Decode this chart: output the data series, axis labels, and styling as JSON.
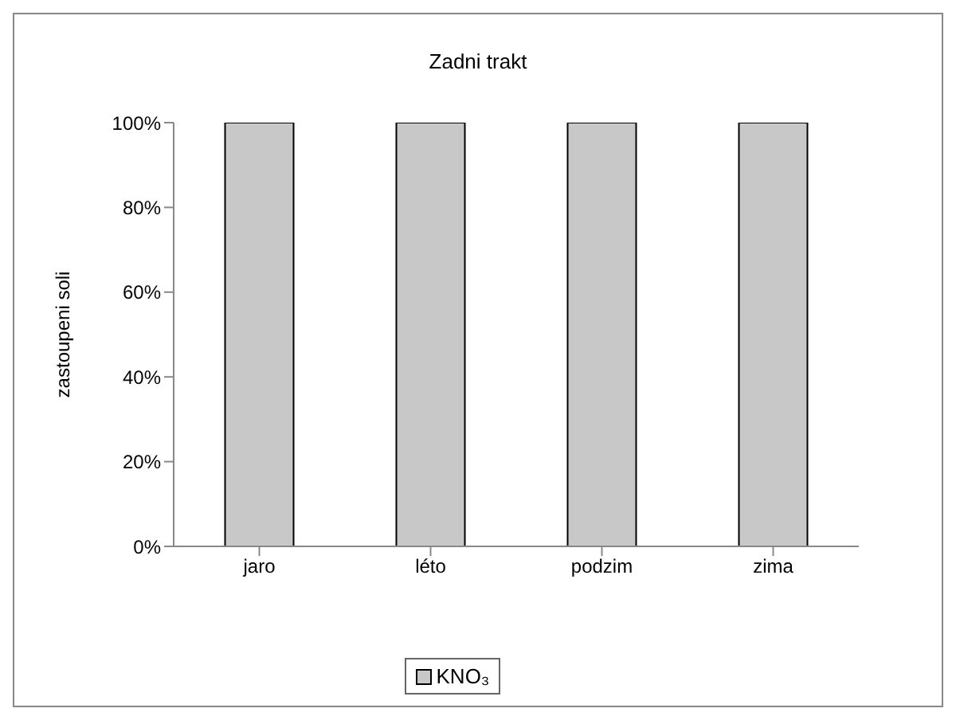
{
  "chart_data": {
    "type": "bar",
    "title": "Zadni trakt",
    "ylabel": "zastoupeni soli",
    "categories": [
      "jaro",
      "léto",
      "podzim",
      "zima"
    ],
    "series": [
      {
        "name": "KNO₃",
        "color": "#c8c8c8",
        "values": [
          100,
          100,
          100,
          100
        ]
      }
    ],
    "ylim": [
      0,
      100
    ],
    "yticks": [
      {
        "value": 0,
        "label": "0%"
      },
      {
        "value": 20,
        "label": "20%"
      },
      {
        "value": 40,
        "label": "40%"
      },
      {
        "value": 60,
        "label": "60%"
      },
      {
        "value": 80,
        "label": "80%"
      },
      {
        "value": 100,
        "label": "100%"
      }
    ],
    "grid": false,
    "legend": "bottom"
  }
}
